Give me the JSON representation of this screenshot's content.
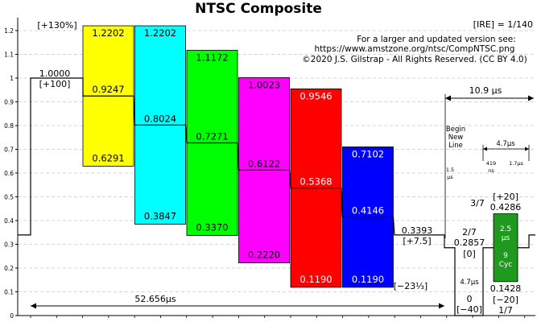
{
  "title": "NTSC Composite",
  "ire_scale": "[IRE] = 1/140",
  "credit": {
    "line1": "For a larger and updated version see:",
    "line2": "https://www.amstzone.org/ntsc/CompNTSC.png",
    "line3": "©2020 J.S. Gilstrap - All Rights Reserved. (CC BY 4.0)"
  },
  "chart_data": {
    "type": "diagram",
    "ylim": [
      0,
      1.25
    ],
    "yticks": [
      "0",
      "0.1",
      "0.2",
      "0.3",
      "0.4",
      "0.5",
      "0.6",
      "0.7",
      "0.8",
      "0.9",
      "1",
      "1.1",
      "1.2"
    ],
    "grid": true,
    "white_level": {
      "value": "1.0000",
      "ire": "[+100]"
    },
    "bars": [
      {
        "color": "#ffff00",
        "top": 1.2202,
        "mid": 0.9247,
        "bottom": 0.6291,
        "top_label": "1.2202",
        "mid_label": "0.9247",
        "bottom_label": "0.6291"
      },
      {
        "color": "#00ffff",
        "top": 1.2202,
        "mid": 0.8024,
        "bottom": 0.3847,
        "top_label": "1.2202",
        "mid_label": "0.8024",
        "bottom_label": "0.3847"
      },
      {
        "color": "#00ff00",
        "top": 1.1172,
        "mid": 0.7271,
        "bottom": 0.337,
        "top_label": "1.1172",
        "mid_label": "0.7271",
        "bottom_label": "0.3370"
      },
      {
        "color": "#ff00ff",
        "top": 1.0023,
        "mid": 0.6122,
        "bottom": 0.222,
        "top_label": "1.0023",
        "mid_label": "0.6122",
        "bottom_label": "0.2220"
      },
      {
        "color": "#ff0000",
        "top": 0.9546,
        "mid": 0.5368,
        "bottom": 0.119,
        "top_label": "0.9546",
        "mid_label": "0.5368",
        "bottom_label": "0.1190"
      },
      {
        "color": "#0000ff",
        "top": 0.7102,
        "mid": 0.4146,
        "bottom": 0.119,
        "top_label": "0.7102",
        "mid_label": "0.4146",
        "bottom_label": "0.1190"
      }
    ],
    "annotations": {
      "plus130": "[+130%]",
      "minus23": "[−23⅓]",
      "black_value": "0.3393",
      "black_ire": "[+7.5]",
      "time_active": "52.656μs",
      "time_blank": "10.9 μs",
      "begin_new_line": [
        "Begin",
        "New",
        "Line"
      ],
      "t15": [
        "1.5",
        "μs"
      ],
      "t47_top": "4.7μs",
      "t419": [
        "419",
        "ns"
      ],
      "t17": "1.7μs",
      "t47_sync": "4.7μs",
      "two_seventh": "2/7",
      "blank_level": "0.2857",
      "blank_ire": "[0]",
      "three_seventh": "3/7",
      "burst_top_ire": "[+20]",
      "burst_top": "0.4286",
      "burst_dur": [
        "2.5",
        "μs"
      ],
      "burst_cyc": [
        "9",
        "Cyc"
      ],
      "burst_bottom": "0.1428",
      "burst_bottom_ire": "[−20]",
      "one_seventh": "1/7",
      "sync_zero": "0",
      "sync_ire": "[−40]"
    }
  }
}
